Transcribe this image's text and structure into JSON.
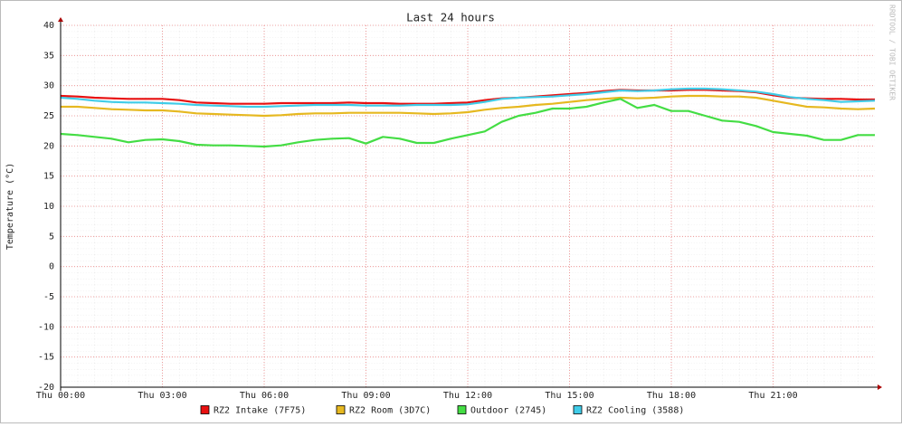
{
  "chart_data": {
    "type": "line",
    "title": "Last 24 hours",
    "y_label": "Temperature (°C)",
    "watermark": "RRDTOOL / TOBI OETIKER",
    "grid": true,
    "xlim": [
      0,
      24
    ],
    "xticks": [
      {
        "value": 0,
        "label": "Thu 00:00"
      },
      {
        "value": 3,
        "label": "Thu 03:00"
      },
      {
        "value": 6,
        "label": "Thu 06:00"
      },
      {
        "value": 9,
        "label": "Thu 09:00"
      },
      {
        "value": 12,
        "label": "Thu 12:00"
      },
      {
        "value": 15,
        "label": "Thu 15:00"
      },
      {
        "value": 18,
        "label": "Thu 18:00"
      },
      {
        "value": 21,
        "label": "Thu 21:00"
      }
    ],
    "ylim": [
      -20,
      40
    ],
    "yticks": [
      -20,
      -15,
      -10,
      -5,
      0,
      5,
      10,
      15,
      20,
      25,
      30,
      35,
      40
    ],
    "x": [
      0,
      0.5,
      1,
      1.5,
      2,
      2.5,
      3,
      3.5,
      4,
      4.5,
      5,
      5.5,
      6,
      6.5,
      7,
      7.5,
      8,
      8.5,
      9,
      9.5,
      10,
      10.5,
      11,
      11.5,
      12,
      12.5,
      13,
      13.5,
      14,
      14.5,
      15,
      15.5,
      16,
      16.5,
      17,
      17.5,
      18,
      18.5,
      19,
      19.5,
      20,
      20.5,
      21,
      21.5,
      22,
      22.5,
      23,
      23.5,
      24
    ],
    "series": [
      {
        "name": "RZ2 Intake (7F75)",
        "color": "#e81010",
        "values": [
          28.3,
          28.2,
          28,
          27.9,
          27.8,
          27.8,
          27.8,
          27.6,
          27.2,
          27.1,
          27,
          27,
          27,
          27.1,
          27.1,
          27.1,
          27.1,
          27.2,
          27.1,
          27.1,
          27,
          27,
          27,
          27.1,
          27.2,
          27.6,
          27.9,
          28,
          28.2,
          28.4,
          28.6,
          28.8,
          29.1,
          29.3,
          29.2,
          29.2,
          29.2,
          29.3,
          29.3,
          29.2,
          29.1,
          28.9,
          28.4,
          28,
          27.9,
          27.8,
          27.8,
          27.7,
          27.7
        ]
      },
      {
        "name": "RZ2 Room (3D7C)",
        "color": "#e6b820",
        "values": [
          26.5,
          26.5,
          26.3,
          26.1,
          26,
          25.9,
          25.9,
          25.7,
          25.4,
          25.3,
          25.2,
          25.1,
          25,
          25.1,
          25.3,
          25.4,
          25.4,
          25.5,
          25.5,
          25.5,
          25.5,
          25.4,
          25.3,
          25.4,
          25.6,
          26,
          26.3,
          26.5,
          26.8,
          27,
          27.3,
          27.6,
          27.8,
          28,
          27.9,
          28,
          28.2,
          28.3,
          28.3,
          28.2,
          28.2,
          28,
          27.5,
          27,
          26.5,
          26.4,
          26.2,
          26.1,
          26.2
        ]
      },
      {
        "name": "Outdoor (2745)",
        "color": "#44dd44",
        "values": [
          22,
          21.8,
          21.5,
          21.2,
          20.6,
          21,
          21.1,
          20.8,
          20.2,
          20.1,
          20.1,
          20,
          19.9,
          20.1,
          20.6,
          21,
          21.2,
          21.3,
          20.4,
          21.5,
          21.2,
          20.5,
          20.5,
          21.2,
          21.8,
          22.4,
          24,
          25,
          25.5,
          26.2,
          26.2,
          26.5,
          27.2,
          27.8,
          26.3,
          26.8,
          25.8,
          25.8,
          25,
          24.2,
          24,
          23.3,
          22.3,
          22,
          21.7,
          21,
          21,
          21.8,
          21.8
        ]
      },
      {
        "name": "RZ2 Cooling (3588)",
        "color": "#40cce8",
        "values": [
          28,
          27.8,
          27.5,
          27.3,
          27.2,
          27.2,
          27.1,
          27,
          26.8,
          26.7,
          26.6,
          26.5,
          26.5,
          26.6,
          26.7,
          26.8,
          26.8,
          26.8,
          26.7,
          26.7,
          26.7,
          26.8,
          26.8,
          26.8,
          26.9,
          27.3,
          27.8,
          28,
          28.1,
          28.2,
          28.4,
          28.6,
          28.9,
          29.2,
          29.1,
          29.2,
          29.4,
          29.5,
          29.5,
          29.4,
          29.2,
          29,
          28.6,
          28.1,
          27.8,
          27.6,
          27.3,
          27.4,
          27.5
        ]
      }
    ]
  }
}
